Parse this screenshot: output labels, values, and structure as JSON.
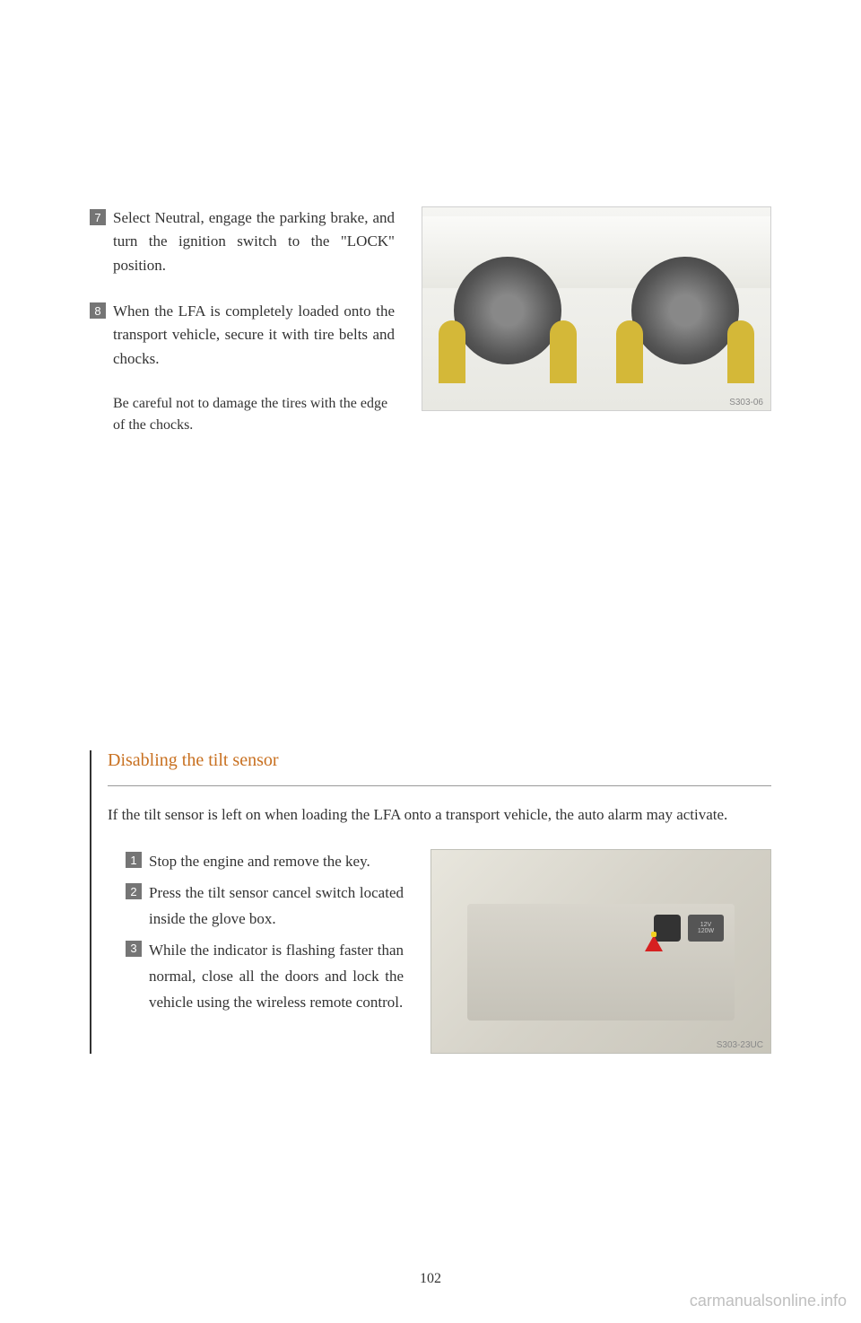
{
  "top_instructions": [
    {
      "number": "7",
      "text": "Select Neutral, engage the parking brake, and turn the ignition switch to the \"LOCK\" position."
    },
    {
      "number": "8",
      "text": "When the LFA is completely loaded onto the transport vehicle, secure it with tire belts and chocks."
    }
  ],
  "note_text": "Be careful not to damage the tires with the edge of the chocks.",
  "tire_image_code": "S303-06",
  "section": {
    "title": "Disabling the tilt sensor",
    "intro": "If the tilt sensor is left on when loading the LFA onto a transport vehicle, the auto alarm may activate.",
    "instructions": [
      {
        "number": "1",
        "text": "Stop the engine and remove the key."
      },
      {
        "number": "2",
        "text": "Press the tilt sensor cancel switch located inside the glove box."
      },
      {
        "number": "3",
        "text": "While the indicator is flashing faster than normal, close all the doors and lock the vehicle using the wireless remote control."
      }
    ]
  },
  "glovebox_image_code": "S303-23UC",
  "power_outlet": {
    "line1": "12V",
    "line2": "120W"
  },
  "page_number": "102",
  "watermark": "carmanualsonline.info",
  "colors": {
    "title_color": "#c87020",
    "step_bg": "#757575",
    "text_color": "#333333",
    "chock_color": "#d4b838",
    "arrow_color": "#d62020"
  }
}
